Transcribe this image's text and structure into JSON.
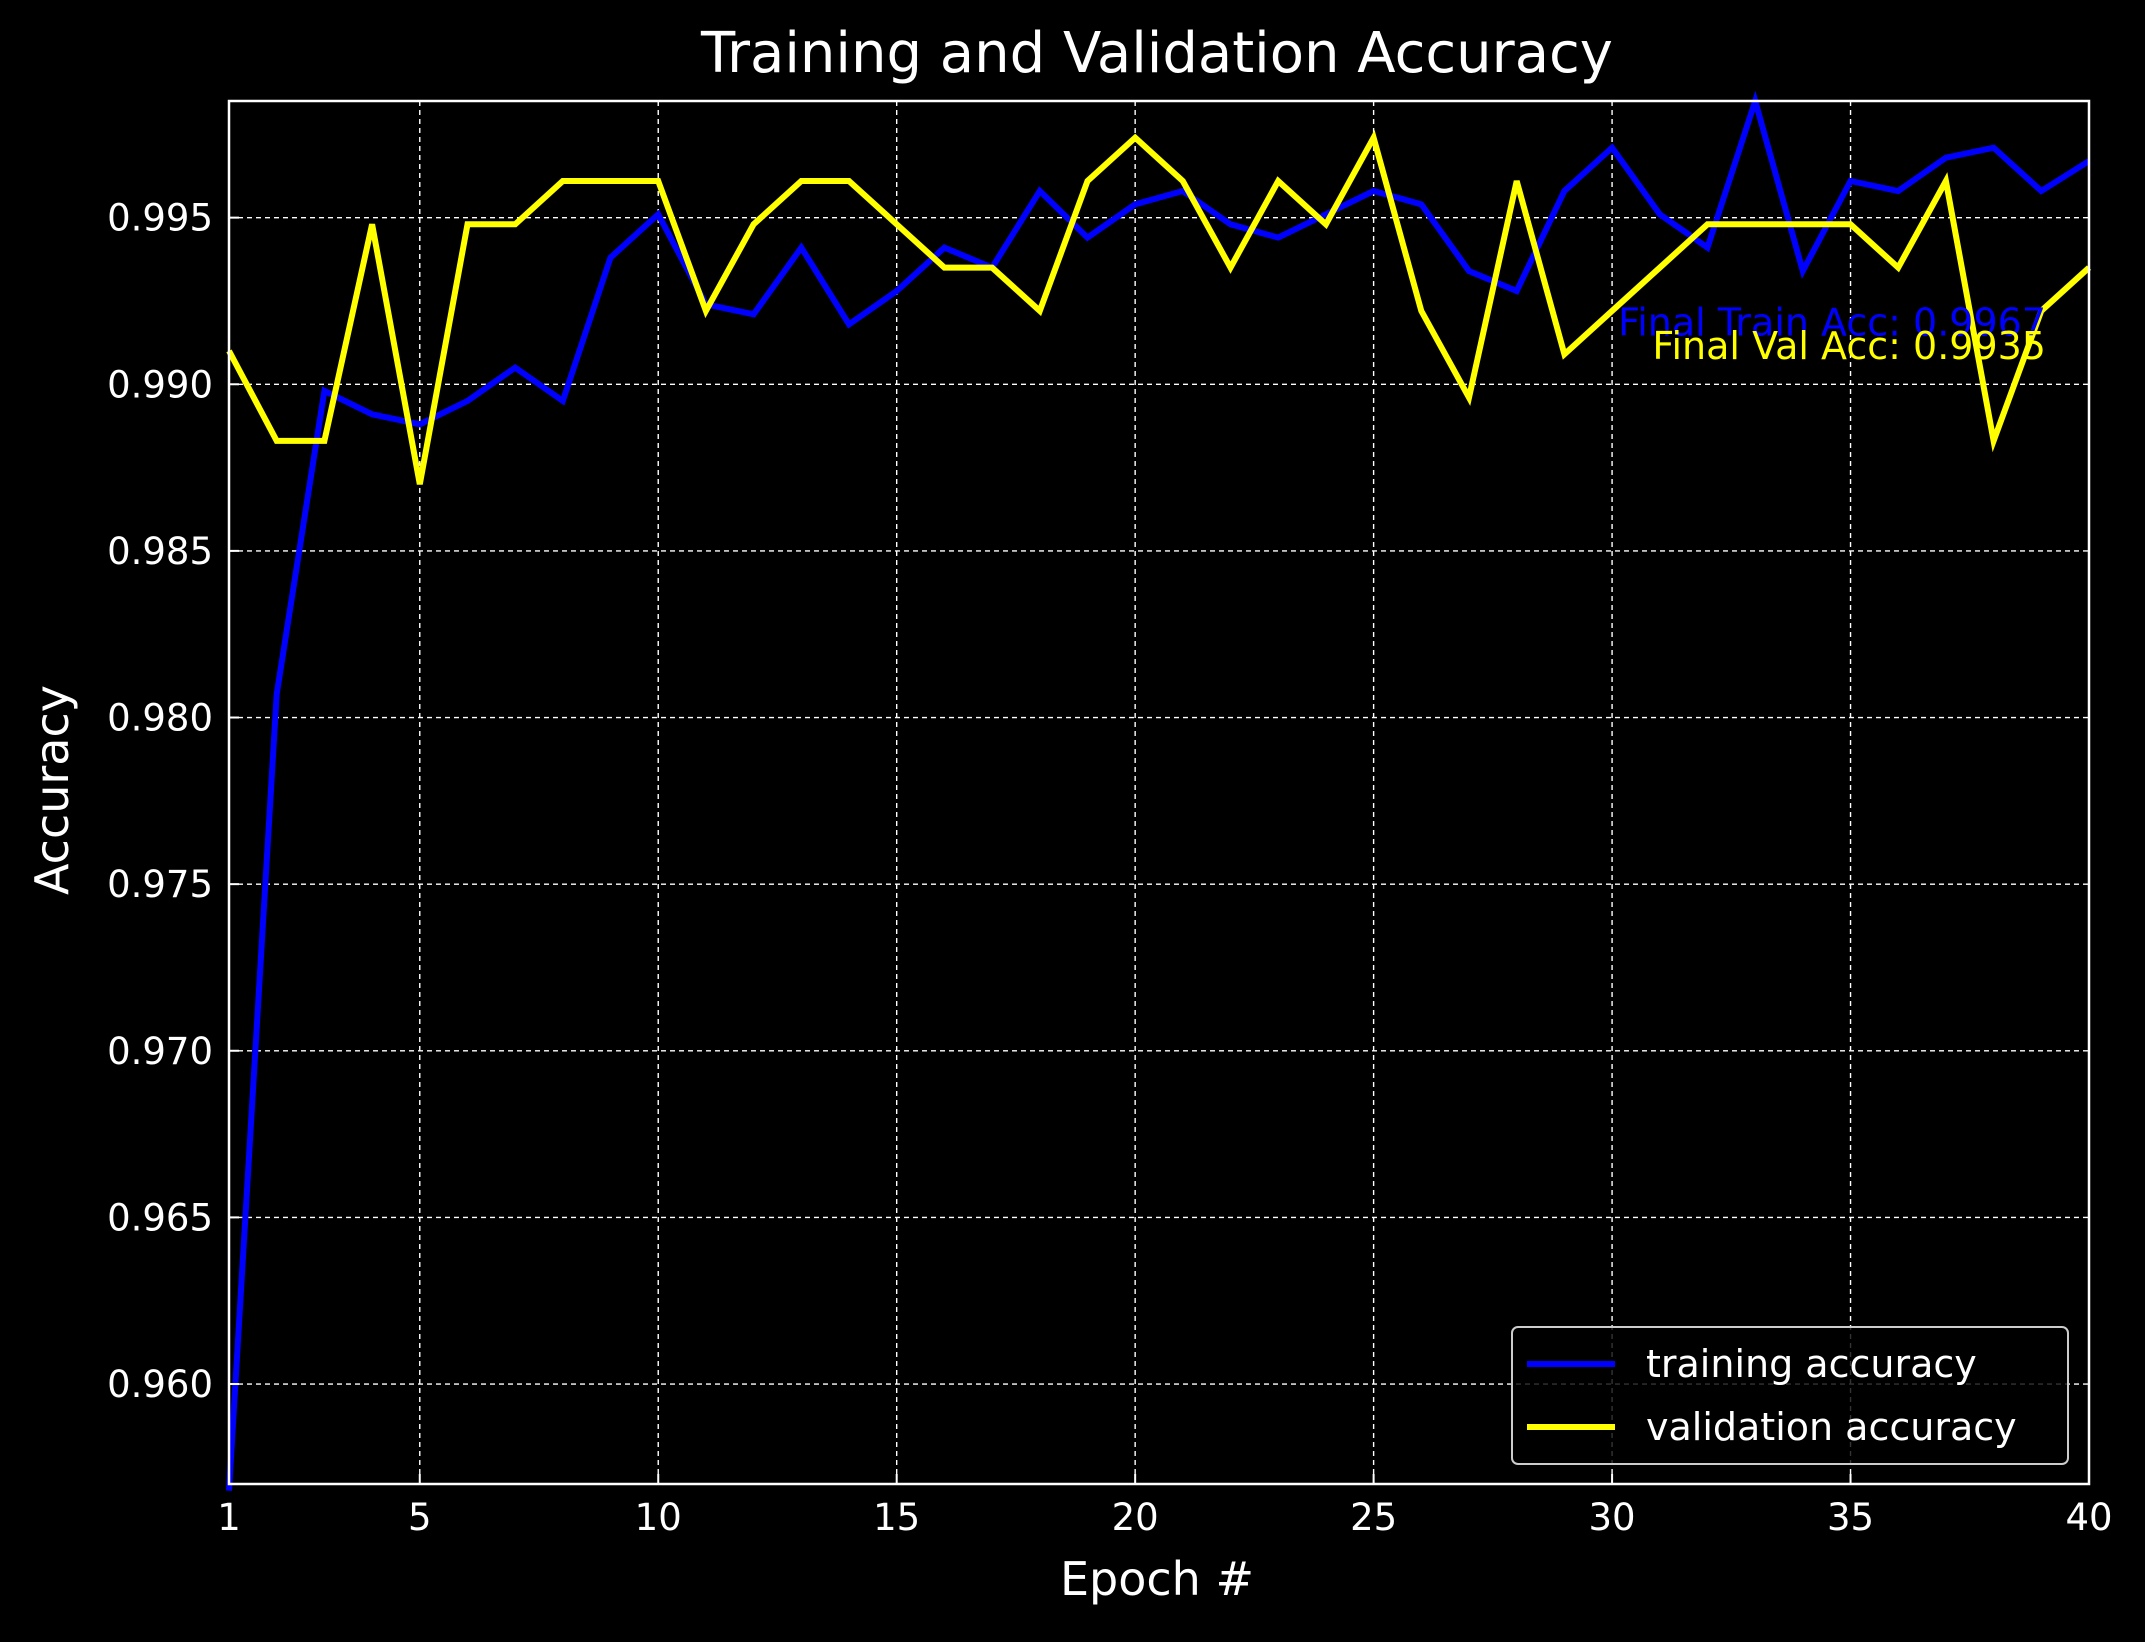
{
  "chart_data": {
    "type": "line",
    "title": "Training and Validation Accuracy",
    "xlabel": "Epoch #",
    "ylabel": "Accuracy",
    "xlim": [
      1,
      40
    ],
    "ylim": [
      0.957,
      0.9985
    ],
    "xticks": [
      1,
      5,
      10,
      15,
      20,
      25,
      30,
      35,
      40
    ],
    "yticks": [
      0.96,
      0.965,
      0.97,
      0.975,
      0.98,
      0.985,
      0.99,
      0.995
    ],
    "ytick_labels": [
      "0.960",
      "0.965",
      "0.970",
      "0.975",
      "0.980",
      "0.985",
      "0.990",
      "0.995"
    ],
    "grid": true,
    "legend_position": "lower-right",
    "background_color": "#000000",
    "foreground_color": "#ffffff",
    "x": [
      1,
      2,
      3,
      4,
      5,
      6,
      7,
      8,
      9,
      10,
      11,
      12,
      13,
      14,
      15,
      16,
      17,
      18,
      19,
      20,
      21,
      22,
      23,
      24,
      25,
      26,
      27,
      28,
      29,
      30,
      31,
      32,
      33,
      34,
      35,
      36,
      37,
      38,
      39,
      40
    ],
    "series": [
      {
        "name": "training accuracy",
        "color": "#0000ff",
        "values": [
          0.9568,
          0.9807,
          0.9898,
          0.9891,
          0.9888,
          0.9895,
          0.9905,
          0.9895,
          0.9938,
          0.9951,
          0.9924,
          0.9921,
          0.9941,
          0.9918,
          0.9928,
          0.9941,
          0.9935,
          0.9958,
          0.9944,
          0.9954,
          0.9958,
          0.9948,
          0.9944,
          0.9951,
          0.9958,
          0.9954,
          0.9934,
          0.9928,
          0.9958,
          0.9971,
          0.9951,
          0.9941,
          0.9985,
          0.9934,
          0.9961,
          0.9958,
          0.9968,
          0.9971,
          0.9958,
          0.9967
        ]
      },
      {
        "name": "validation accuracy",
        "color": "#ffff00",
        "values": [
          0.991,
          0.9883,
          0.9883,
          0.9948,
          0.987,
          0.9948,
          0.9948,
          0.9961,
          0.9961,
          0.9961,
          0.9922,
          0.9948,
          0.9961,
          0.9961,
          0.9948,
          0.9935,
          0.9935,
          0.9922,
          0.9961,
          0.9974,
          0.9961,
          0.9935,
          0.9961,
          0.9948,
          0.9974,
          0.9922,
          0.9896,
          0.9961,
          0.9909,
          0.9922,
          0.9935,
          0.9948,
          0.9948,
          0.9948,
          0.9948,
          0.9935,
          0.9961,
          0.9883,
          0.9922,
          0.9935
        ]
      }
    ],
    "annotations": [
      {
        "text": "Final Train Acc: 0.9967",
        "color": "#0000ff",
        "anchor_series": "training accuracy"
      },
      {
        "text": "Final Val Acc: 0.9935",
        "color": "#ffff00",
        "anchor_series": "validation accuracy"
      }
    ]
  }
}
